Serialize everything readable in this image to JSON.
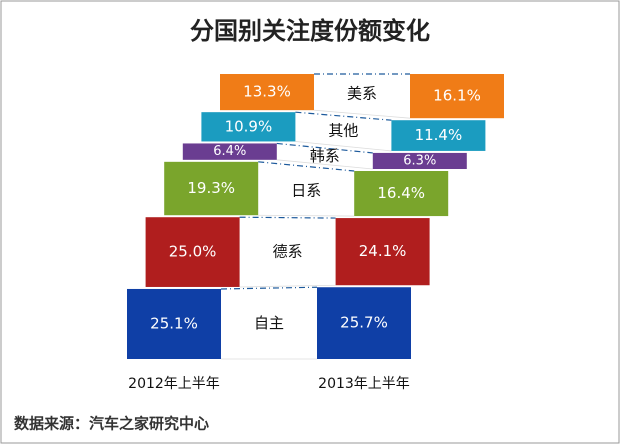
{
  "chart_data": {
    "type": "stacked-funnel",
    "title": "分国别关注度份额变化",
    "categories": [
      "2012年上半年",
      "2013年上半年"
    ],
    "series": [
      {
        "name": "自主",
        "color": "#0f3fa6",
        "values": [
          25.1,
          25.7
        ],
        "value_labels": [
          "25.1%",
          "25.7%"
        ]
      },
      {
        "name": "德系",
        "color": "#b01e1e",
        "values": [
          25.0,
          24.1
        ],
        "value_labels": [
          "25.0%",
          "24.1%"
        ]
      },
      {
        "name": "日系",
        "color": "#7aa52c",
        "values": [
          19.3,
          16.4
        ],
        "value_labels": [
          "19.3%",
          "16.4%"
        ]
      },
      {
        "name": "韩系",
        "color": "#6a3d91",
        "values": [
          6.4,
          6.3
        ],
        "value_labels": [
          "6.4%",
          "6.3%"
        ]
      },
      {
        "name": "其他",
        "color": "#1b9cc0",
        "values": [
          10.9,
          11.4
        ],
        "value_labels": [
          "10.9%",
          "11.4%"
        ]
      },
      {
        "name": "美系",
        "color": "#f07c17",
        "values": [
          13.3,
          16.1
        ],
        "value_labels": [
          "13.3%",
          "16.1%"
        ]
      }
    ],
    "source": "数据来源：汽车之家研究中心"
  }
}
